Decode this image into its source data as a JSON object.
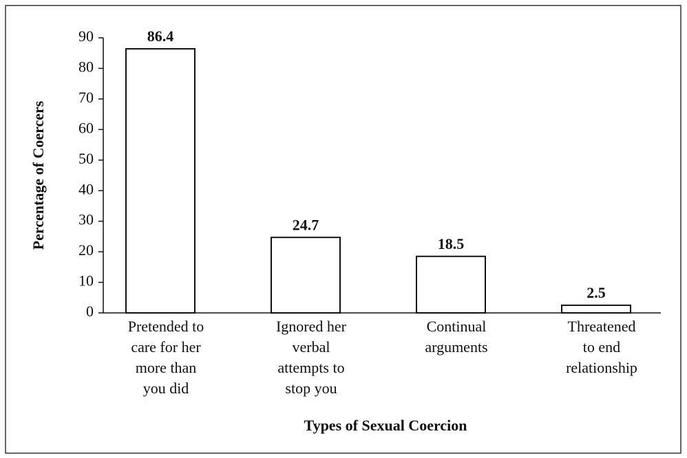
{
  "chart_data": {
    "type": "bar",
    "ylabel": "Percentage of Coercers",
    "xlabel": "Types of Sexual Coercion",
    "categories": [
      [
        "Pretended to",
        "care for her",
        "more than",
        "you did"
      ],
      [
        "Ignored her",
        "verbal",
        "attempts to",
        "stop you"
      ],
      [
        "Continual",
        "arguments"
      ],
      [
        "Threatened",
        "to end",
        "relationship"
      ]
    ],
    "values": [
      86.4,
      24.7,
      18.5,
      2.5
    ],
    "color": "#ffffff",
    "edgecolor": "#111111",
    "ylim": [
      0,
      90
    ],
    "yticks": [
      0,
      10,
      20,
      30,
      40,
      50,
      60,
      70,
      80,
      90
    ]
  }
}
